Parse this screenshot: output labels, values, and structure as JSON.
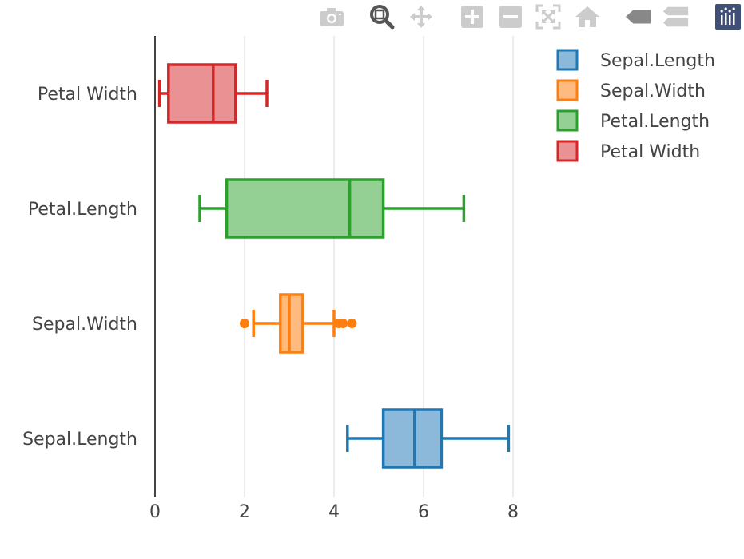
{
  "toolbar": {
    "buttons": [
      {
        "name": "camera-icon",
        "title": "Download plot as a png",
        "color": "#cccccc"
      },
      {
        "name": "zoom-icon",
        "title": "Zoom",
        "color": "#555555"
      },
      {
        "name": "pan-icon",
        "title": "Pan",
        "color": "#cccccc"
      },
      {
        "name": "zoom-in-icon",
        "title": "Zoom in",
        "color": "#cccccc"
      },
      {
        "name": "zoom-out-icon",
        "title": "Zoom out",
        "color": "#cccccc"
      },
      {
        "name": "autoscale-icon",
        "title": "Autoscale",
        "color": "#cccccc"
      },
      {
        "name": "home-icon",
        "title": "Reset axes",
        "color": "#cccccc"
      },
      {
        "name": "hover-closest-icon",
        "title": "Show closest data on hover",
        "color": "#888888"
      },
      {
        "name": "hover-compare-icon",
        "title": "Compare data on hover",
        "color": "#cccccc"
      },
      {
        "name": "plotly-logo-icon",
        "title": "Produced with Plotly",
        "color": "#3f4f75"
      }
    ]
  },
  "chart_data": {
    "type": "box",
    "orientation": "horizontal",
    "categories": [
      "Sepal.Length",
      "Sepal.Width",
      "Petal.Length",
      "Petal Width"
    ],
    "xlim": [
      0,
      8
    ],
    "xticks": [
      0,
      2,
      4,
      6,
      8
    ],
    "xtick_labels": [
      "0",
      "2",
      "4",
      "6",
      "8"
    ],
    "grid": true,
    "legend_position": "top-right",
    "series": [
      {
        "name": "Sepal.Length",
        "color": "#1f77b4",
        "fill": "#8cb8da",
        "whisker_low": 4.3,
        "q1": 5.1,
        "median": 5.8,
        "q3": 6.4,
        "whisker_high": 7.9,
        "outliers": []
      },
      {
        "name": "Sepal.Width",
        "color": "#ff7f0e",
        "fill": "#ffbb7f",
        "whisker_low": 2.2,
        "q1": 2.8,
        "median": 3.0,
        "q3": 3.3,
        "whisker_high": 4.0,
        "outliers": [
          2.0,
          4.1,
          4.2,
          4.4
        ]
      },
      {
        "name": "Petal.Length",
        "color": "#2ca02c",
        "fill": "#94cf94",
        "whisker_low": 1.0,
        "q1": 1.6,
        "median": 4.35,
        "q3": 5.1,
        "whisker_high": 6.9,
        "outliers": []
      },
      {
        "name": "Petal Width",
        "color": "#d62728",
        "fill": "#ea9293",
        "whisker_low": 0.1,
        "q1": 0.3,
        "median": 1.3,
        "q3": 1.8,
        "whisker_high": 2.5,
        "outliers": []
      }
    ]
  }
}
